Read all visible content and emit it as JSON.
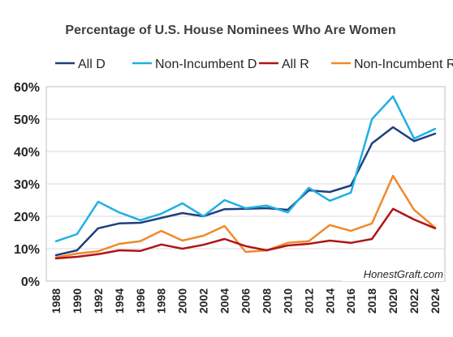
{
  "chart_data": {
    "type": "line",
    "title": "Percentage of U.S. House Nominees Who Are Women",
    "xlabel": "",
    "ylabel": "",
    "x": [
      1988,
      1990,
      1992,
      1994,
      1996,
      1998,
      2000,
      2002,
      2004,
      2006,
      2008,
      2010,
      2012,
      2014,
      2016,
      2018,
      2020,
      2022,
      2024
    ],
    "x_tick_labels": [
      "1988",
      "1990",
      "1992",
      "1994",
      "1996",
      "1998",
      "2000",
      "2002",
      "2004",
      "2006",
      "2008",
      "2010",
      "2012",
      "2014",
      "2016",
      "2018",
      "2020",
      "2022",
      "2024"
    ],
    "ylim": [
      0,
      60
    ],
    "y_ticks": [
      0,
      10,
      20,
      30,
      40,
      50,
      60
    ],
    "y_tick_labels": [
      "0%",
      "10%",
      "20%",
      "30%",
      "40%",
      "50%",
      "60%"
    ],
    "grid": "horizontal",
    "legend_position": "top",
    "annotation": "HonestGraft.com",
    "series": [
      {
        "name": "All D",
        "color": "#1f3f7f",
        "values": [
          8,
          9.5,
          16.3,
          17.8,
          18,
          19.5,
          21,
          20,
          22.2,
          22.3,
          22.5,
          22,
          28,
          27.5,
          29.5,
          42.5,
          47.5,
          43.2,
          45.5
        ]
      },
      {
        "name": "Non-Incumbent D",
        "color": "#1fb0e6",
        "values": [
          12.3,
          14.5,
          24.5,
          21.2,
          18.8,
          20.8,
          24,
          20,
          25,
          22.5,
          23.3,
          21.2,
          28.8,
          24.8,
          27.3,
          50,
          57,
          44,
          47
        ]
      },
      {
        "name": "All R",
        "color": "#b01417",
        "values": [
          7,
          7.5,
          8.3,
          9.5,
          9.3,
          11.3,
          10,
          11.2,
          13,
          10.8,
          9.5,
          11,
          11.5,
          12.5,
          11.8,
          13,
          22.3,
          19,
          16.3
        ]
      },
      {
        "name": "Non-Incumbent R",
        "color": "#f0892b",
        "values": [
          7.3,
          8.5,
          9.2,
          11.5,
          12.3,
          15.5,
          12.5,
          14,
          17,
          9,
          9.5,
          11.8,
          12.3,
          17.3,
          15.5,
          17.8,
          32.5,
          22,
          16.5
        ]
      }
    ]
  }
}
